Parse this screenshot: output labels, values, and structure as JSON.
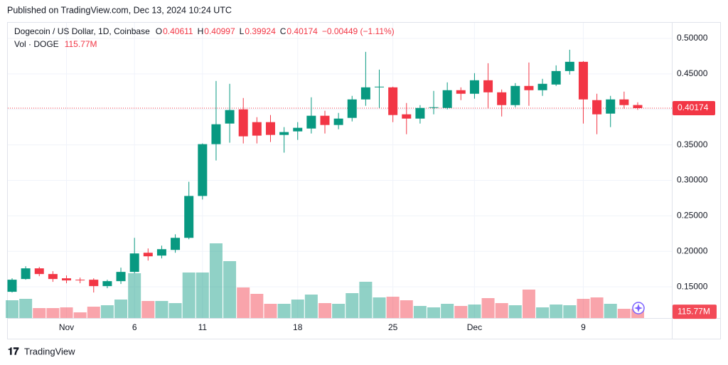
{
  "chart_data": {
    "type": "candlestick",
    "published": "Published on TradingView.com, Dec 13, 2024 10:24 UTC",
    "title": "Dogecoin / US Dollar, 1D, Coinbase",
    "ohlc_labels": [
      "O",
      "H",
      "L",
      "C"
    ],
    "change": "−0.00449 (−1.11%)",
    "brand": "TradingView",
    "categories": [
      null,
      null,
      null,
      null,
      "Nov",
      null,
      null,
      null,
      null,
      "6",
      null,
      null,
      null,
      null,
      "11",
      null,
      null,
      null,
      null,
      null,
      null,
      "18",
      null,
      null,
      null,
      null,
      null,
      null,
      "25",
      null,
      null,
      null,
      null,
      null,
      "Dec",
      null,
      null,
      null,
      null,
      null,
      null,
      null,
      "9",
      null,
      null,
      null,
      null
    ],
    "open": [
      0.143,
      0.161,
      0.176,
      0.168,
      0.162,
      0.16,
      0.16,
      0.151,
      0.158,
      0.171,
      0.198,
      0.194,
      0.202,
      0.219,
      0.278,
      0.351,
      0.38,
      0.4,
      0.382,
      0.382,
      0.364,
      0.369,
      0.373,
      0.391,
      0.378,
      0.388,
      0.414,
      0.431,
      0.431,
      0.393,
      0.387,
      0.402,
      0.402,
      0.427,
      0.422,
      0.441,
      0.424,
      0.406,
      0.433,
      0.427,
      0.435,
      0.454,
      0.467,
      0.413,
      0.394,
      0.414,
      0.40611
    ],
    "high": [
      0.162,
      0.179,
      0.178,
      0.172,
      0.166,
      0.163,
      0.162,
      0.16,
      0.177,
      0.219,
      0.204,
      0.208,
      0.224,
      0.298,
      0.352,
      0.44,
      0.436,
      0.416,
      0.389,
      0.392,
      0.375,
      0.382,
      0.417,
      0.398,
      0.395,
      0.419,
      0.481,
      0.456,
      0.432,
      0.409,
      0.406,
      0.426,
      0.438,
      0.431,
      0.451,
      0.465,
      0.428,
      0.437,
      0.466,
      0.443,
      0.462,
      0.484,
      0.468,
      0.422,
      0.419,
      0.425,
      0.40997
    ],
    "low": [
      0.142,
      0.16,
      0.165,
      0.157,
      0.155,
      0.155,
      0.142,
      0.148,
      0.154,
      0.169,
      0.187,
      0.19,
      0.198,
      0.217,
      0.273,
      0.328,
      0.353,
      0.352,
      0.352,
      0.354,
      0.339,
      0.357,
      0.366,
      0.366,
      0.372,
      0.383,
      0.405,
      0.402,
      0.382,
      0.365,
      0.38,
      0.393,
      0.4,
      0.413,
      0.415,
      0.401,
      0.39,
      0.403,
      0.405,
      0.419,
      0.433,
      0.449,
      0.38,
      0.365,
      0.375,
      0.401,
      0.39924
    ],
    "close": [
      0.16,
      0.176,
      0.168,
      0.161,
      0.159,
      0.159,
      0.151,
      0.158,
      0.171,
      0.197,
      0.193,
      0.203,
      0.219,
      0.278,
      0.351,
      0.379,
      0.399,
      0.362,
      0.363,
      0.364,
      0.368,
      0.374,
      0.391,
      0.378,
      0.387,
      0.414,
      0.431,
      0.432,
      0.392,
      0.387,
      0.402,
      0.403,
      0.427,
      0.422,
      0.441,
      0.424,
      0.406,
      0.433,
      0.427,
      0.436,
      0.454,
      0.467,
      0.414,
      0.393,
      0.414,
      0.406,
      0.40174
    ],
    "volume": {
      "name": "Vol · DOGE",
      "values": [
        225,
        243,
        126,
        126,
        135,
        72,
        144,
        162,
        234,
        567,
        216,
        216,
        189,
        576,
        576,
        945,
        720,
        387,
        306,
        180,
        180,
        234,
        297,
        189,
        180,
        315,
        459,
        261,
        270,
        225,
        153,
        135,
        180,
        153,
        171,
        252,
        189,
        162,
        360,
        135,
        171,
        162,
        243,
        261,
        180,
        117,
        115.77
      ],
      "value_labels": [
        null,
        null,
        null,
        null,
        null,
        null,
        null,
        null,
        null,
        null,
        null,
        null,
        null,
        null,
        null,
        null,
        null,
        null,
        null,
        null,
        null,
        null,
        null,
        null,
        null,
        null,
        null,
        null,
        null,
        null,
        null,
        null,
        null,
        null,
        null,
        null,
        null,
        null,
        null,
        null,
        null,
        null,
        null,
        null,
        null,
        null,
        "115.77M"
      ]
    },
    "ylim": [
      0.106,
      0.522
    ],
    "yticks": [
      {
        "value": 0.15,
        "label": "0.15000"
      },
      {
        "value": 0.2,
        "label": "0.20000"
      },
      {
        "value": 0.25,
        "label": "0.25000"
      },
      {
        "value": 0.3,
        "label": "0.30000"
      },
      {
        "value": 0.35,
        "label": "0.35000"
      },
      {
        "value": 0.4,
        "label": "0.40000"
      },
      {
        "value": 0.45,
        "label": "0.45000"
      },
      {
        "value": 0.5,
        "label": "0.50000"
      }
    ],
    "grid": true,
    "up_color": "#089981",
    "down_color": "#f23645"
  }
}
